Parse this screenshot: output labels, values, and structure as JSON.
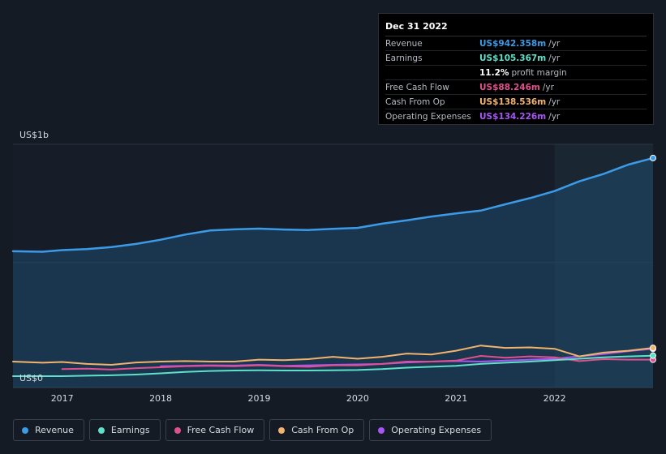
{
  "tooltip": {
    "date": "Dec 31 2022",
    "rows": [
      {
        "label": "Revenue",
        "value": "US$942.358m",
        "unit": "/yr",
        "color": "#3b9be8"
      },
      {
        "label": "Earnings",
        "value": "US$105.367m",
        "unit": "/yr",
        "color": "#5fe0c8"
      },
      {
        "label": "",
        "value": "11.2%",
        "unit": "profit margin",
        "color": "#ffffff"
      },
      {
        "label": "Free Cash Flow",
        "value": "US$88.246m",
        "unit": "/yr",
        "color": "#e0508e"
      },
      {
        "label": "Cash From Op",
        "value": "US$138.536m",
        "unit": "/yr",
        "color": "#f2b36c"
      },
      {
        "label": "Operating Expenses",
        "value": "US$134.226m",
        "unit": "/yr",
        "color": "#a855f7"
      }
    ]
  },
  "legend": [
    {
      "label": "Revenue",
      "color": "#3b9be8"
    },
    {
      "label": "Earnings",
      "color": "#5fe0c8"
    },
    {
      "label": "Free Cash Flow",
      "color": "#e0508e"
    },
    {
      "label": "Cash From Op",
      "color": "#f2b36c"
    },
    {
      "label": "Operating Expenses",
      "color": "#a855f7"
    }
  ],
  "chart_data": {
    "type": "line",
    "title": "",
    "xlabel": "",
    "ylabel": "",
    "y_top_label": "US$1b",
    "y_bottom_label": "US$0",
    "xlim": [
      2016.5,
      2023.0
    ],
    "ylim": [
      -30,
      1000
    ],
    "x_ticks": [
      2017,
      2018,
      2019,
      2020,
      2021,
      2022
    ],
    "x_tick_labels": [
      "2017",
      "2018",
      "2019",
      "2020",
      "2021",
      "2022"
    ],
    "highlight_from": 2022.0,
    "series": [
      {
        "name": "Revenue",
        "color": "#3b9be8",
        "area": true,
        "x": [
          2016.5,
          2016.8,
          2017.0,
          2017.25,
          2017.5,
          2017.75,
          2018.0,
          2018.25,
          2018.5,
          2018.75,
          2019.0,
          2019.25,
          2019.5,
          2019.75,
          2020.0,
          2020.25,
          2020.5,
          2020.75,
          2021.0,
          2021.25,
          2021.5,
          2021.75,
          2022.0,
          2022.25,
          2022.5,
          2022.75,
          2023.0
        ],
        "y": [
          547,
          545,
          552,
          556,
          565,
          578,
          596,
          618,
          635,
          640,
          643,
          639,
          637,
          642,
          646,
          664,
          678,
          694,
          707,
          719,
          746,
          772,
          802,
          843,
          875,
          914,
          942
        ]
      },
      {
        "name": "Earnings",
        "color": "#5fe0c8",
        "x": [
          2016.5,
          2016.8,
          2017.0,
          2017.25,
          2017.5,
          2017.75,
          2018.0,
          2018.25,
          2018.5,
          2018.75,
          2019.0,
          2019.25,
          2019.5,
          2019.75,
          2020.0,
          2020.25,
          2020.5,
          2020.75,
          2021.0,
          2021.25,
          2021.5,
          2021.75,
          2022.0,
          2022.25,
          2022.5,
          2022.75,
          2023.0
        ],
        "y": [
          18,
          18,
          18,
          20,
          22,
          25,
          30,
          36,
          40,
          42,
          43,
          42,
          42,
          43,
          44,
          48,
          54,
          58,
          62,
          70,
          75,
          80,
          86,
          92,
          98,
          102,
          105
        ]
      },
      {
        "name": "Free Cash Flow",
        "color": "#e0508e",
        "x": [
          2017.0,
          2017.25,
          2017.5,
          2017.75,
          2018.0,
          2018.25,
          2018.5,
          2018.75,
          2019.0,
          2019.25,
          2019.5,
          2019.75,
          2020.0,
          2020.25,
          2020.5,
          2020.75,
          2021.0,
          2021.25,
          2021.5,
          2021.75,
          2022.0,
          2022.25,
          2022.5,
          2022.75,
          2023.0
        ],
        "y": [
          48,
          50,
          46,
          52,
          56,
          60,
          62,
          60,
          64,
          60,
          58,
          64,
          64,
          70,
          80,
          80,
          84,
          104,
          96,
          102,
          98,
          82,
          90,
          88,
          88
        ]
      },
      {
        "name": "Cash From Op",
        "color": "#f2b36c",
        "x": [
          2016.5,
          2016.8,
          2017.0,
          2017.25,
          2017.5,
          2017.75,
          2018.0,
          2018.25,
          2018.5,
          2018.75,
          2019.0,
          2019.25,
          2019.5,
          2019.75,
          2020.0,
          2020.25,
          2020.5,
          2020.75,
          2021.0,
          2021.25,
          2021.5,
          2021.75,
          2022.0,
          2022.25,
          2022.5,
          2022.75,
          2023.0
        ],
        "y": [
          80,
          75,
          78,
          70,
          66,
          76,
          80,
          82,
          80,
          80,
          88,
          86,
          90,
          100,
          92,
          100,
          114,
          110,
          126,
          148,
          138,
          140,
          134,
          102,
          118,
          126,
          138
        ]
      },
      {
        "name": "Operating Expenses",
        "color": "#a855f7",
        "x": [
          2018.0,
          2018.25,
          2018.5,
          2018.75,
          2019.0,
          2019.25,
          2019.5,
          2019.75,
          2020.0,
          2020.25,
          2020.5,
          2020.75,
          2021.0,
          2021.25,
          2021.5,
          2021.75,
          2022.0,
          2022.25,
          2022.5,
          2022.75,
          2023.0
        ],
        "y": [
          60,
          62,
          64,
          63,
          66,
          62,
          64,
          66,
          68,
          70,
          76,
          80,
          82,
          80,
          84,
          88,
          92,
          102,
          112,
          124,
          134
        ]
      }
    ]
  }
}
